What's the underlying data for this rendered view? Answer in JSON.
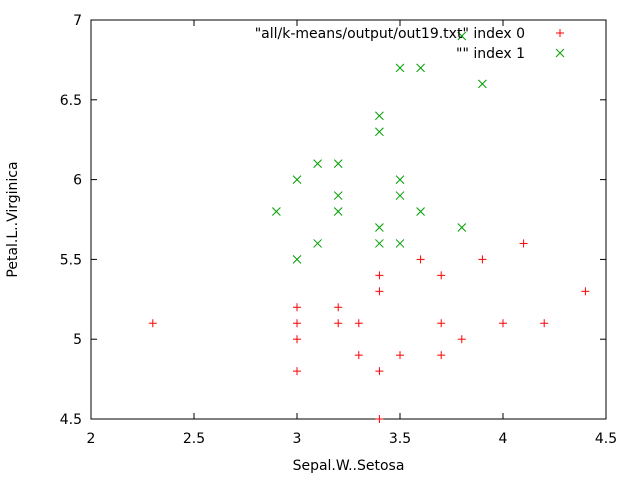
{
  "chart_data": {
    "type": "scatter",
    "title": "",
    "xlabel": "Sepal.W..Setosa",
    "ylabel": "Petal.L..Virginica",
    "xlim": [
      2,
      4.5
    ],
    "ylim": [
      4.5,
      7
    ],
    "xticks": [
      "2",
      "2.5",
      "3",
      "3.5",
      "4",
      "4.5"
    ],
    "yticks": [
      "4.5",
      "5",
      "5.5",
      "6",
      "6.5",
      "7"
    ],
    "grid": false,
    "legend_position": "top-right",
    "series": [
      {
        "name": "\"all/k-means/output/out19.txt\" index 0",
        "marker": "plus",
        "color": "#ff0000",
        "points": [
          [
            2.3,
            5.1
          ],
          [
            3.0,
            5.2
          ],
          [
            3.0,
            5.1
          ],
          [
            3.0,
            5.0
          ],
          [
            3.0,
            4.8
          ],
          [
            3.2,
            5.2
          ],
          [
            3.2,
            5.1
          ],
          [
            3.3,
            5.1
          ],
          [
            3.3,
            4.9
          ],
          [
            3.4,
            5.4
          ],
          [
            3.4,
            5.3
          ],
          [
            3.4,
            4.8
          ],
          [
            3.4,
            4.5
          ],
          [
            3.5,
            4.9
          ],
          [
            3.6,
            5.5
          ],
          [
            3.7,
            5.4
          ],
          [
            3.7,
            5.1
          ],
          [
            3.7,
            4.9
          ],
          [
            3.8,
            5.0
          ],
          [
            3.9,
            5.5
          ],
          [
            4.0,
            5.1
          ],
          [
            4.1,
            5.6
          ],
          [
            4.2,
            5.1
          ],
          [
            4.4,
            5.3
          ]
        ]
      },
      {
        "name": "\"\" index 1",
        "marker": "cross",
        "color": "#00a000",
        "points": [
          [
            2.9,
            5.8
          ],
          [
            3.0,
            6.0
          ],
          [
            3.0,
            5.5
          ],
          [
            3.1,
            6.1
          ],
          [
            3.1,
            5.6
          ],
          [
            3.2,
            6.1
          ],
          [
            3.2,
            5.9
          ],
          [
            3.2,
            5.8
          ],
          [
            3.4,
            6.4
          ],
          [
            3.4,
            6.3
          ],
          [
            3.4,
            5.7
          ],
          [
            3.4,
            5.6
          ],
          [
            3.5,
            6.7
          ],
          [
            3.5,
            6.0
          ],
          [
            3.5,
            5.9
          ],
          [
            3.5,
            5.6
          ],
          [
            3.6,
            6.7
          ],
          [
            3.6,
            5.8
          ],
          [
            3.8,
            6.9
          ],
          [
            3.8,
            5.7
          ],
          [
            3.9,
            6.6
          ]
        ]
      }
    ]
  }
}
